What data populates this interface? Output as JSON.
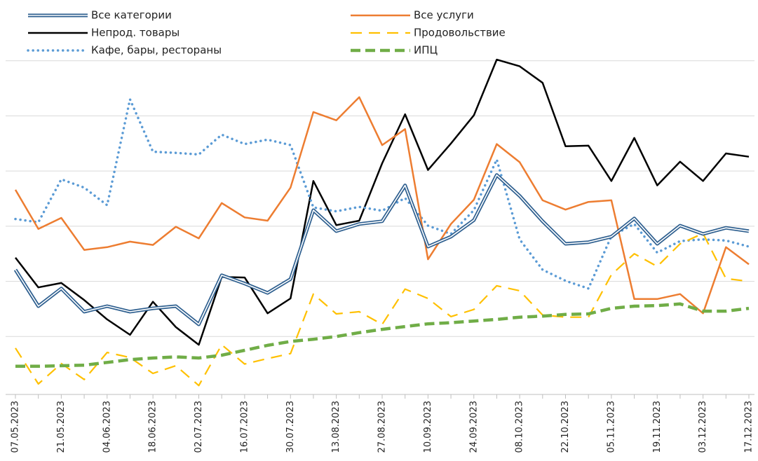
{
  "chart_data": {
    "type": "line",
    "categories": [
      "07.05.2023",
      null,
      "21.05.2023",
      null,
      "04.06.2023",
      null,
      "18.06.2023",
      null,
      "02.07.2023",
      null,
      "16.07.2023",
      null,
      "30.07.2023",
      null,
      "13.08.2023",
      null,
      "27.08.2023",
      null,
      "10.09.2023",
      null,
      "24.09.2023",
      null,
      "08.10.2023",
      null,
      "22.10.2023",
      null,
      "05.11.2023",
      null,
      "19.11.2023",
      null,
      "03.12.2023",
      null,
      "17.12.2023"
    ],
    "ylim": [
      0,
      7
    ],
    "yticks": [
      1,
      2,
      3,
      4,
      5,
      6
    ],
    "grid": true,
    "legend": "top",
    "series": [
      {
        "name": "Все категории",
        "color": "#2e5f8f",
        "line_style": "double",
        "values": [
          2.21,
          1.55,
          1.87,
          1.45,
          1.55,
          1.45,
          1.51,
          1.55,
          1.22,
          2.11,
          1.96,
          1.79,
          2.04,
          3.29,
          2.91,
          3.04,
          3.09,
          3.74,
          2.63,
          2.81,
          3.11,
          3.93,
          3.55,
          3.09,
          2.68,
          2.71,
          2.81,
          3.14,
          2.68,
          3.01,
          2.86,
          2.97,
          2.91
        ]
      },
      {
        "name": "Все услуги",
        "color": "#ed7d31",
        "line_style": "solid",
        "values": [
          3.66,
          2.95,
          3.15,
          2.57,
          2.62,
          2.72,
          2.66,
          2.99,
          2.78,
          3.42,
          3.16,
          3.1,
          3.7,
          5.07,
          4.92,
          5.34,
          4.47,
          4.76,
          2.4,
          3.04,
          3.48,
          4.49,
          4.16,
          3.47,
          3.3,
          3.44,
          3.47,
          1.68,
          1.68,
          1.77,
          1.42,
          2.62,
          2.31
        ]
      },
      {
        "name": "Непрод. товары",
        "color": "#000000",
        "line_style": "solid",
        "values": [
          2.43,
          1.89,
          1.97,
          1.66,
          1.31,
          1.03,
          1.63,
          1.17,
          0.85,
          2.08,
          2.07,
          1.42,
          1.69,
          3.82,
          3.02,
          3.1,
          4.14,
          5.03,
          4.02,
          4.5,
          5.01,
          6.02,
          5.9,
          5.6,
          4.45,
          4.46,
          3.82,
          4.6,
          3.74,
          4.17,
          3.82,
          4.32,
          4.26
        ]
      },
      {
        "name": "Продовольствие",
        "color": "#ffc000",
        "line_style": "dashed",
        "values": [
          0.79,
          0.14,
          0.51,
          0.22,
          0.71,
          0.62,
          0.33,
          0.47,
          0.11,
          0.85,
          0.5,
          0.6,
          0.69,
          1.77,
          1.41,
          1.45,
          1.22,
          1.86,
          1.69,
          1.36,
          1.49,
          1.92,
          1.83,
          1.39,
          1.35,
          1.35,
          2.12,
          2.5,
          2.27,
          2.68,
          2.87,
          2.05,
          2.0
        ]
      },
      {
        "name": "Кафе, бары, рестораны",
        "color": "#5b9bd5",
        "line_style": "dotted",
        "values": [
          3.13,
          3.07,
          3.85,
          3.7,
          3.38,
          5.3,
          4.35,
          4.33,
          4.3,
          4.66,
          4.49,
          4.57,
          4.47,
          3.34,
          3.27,
          3.35,
          3.28,
          3.51,
          3.01,
          2.86,
          3.29,
          4.21,
          2.76,
          2.21,
          2.01,
          1.87,
          2.82,
          3.04,
          2.52,
          2.73,
          2.76,
          2.74,
          2.63
        ]
      },
      {
        "name": "ИПЦ",
        "color": "#70ad47",
        "line_style": "bold-dashed",
        "values": [
          0.46,
          0.46,
          0.47,
          0.48,
          0.53,
          0.58,
          0.61,
          0.63,
          0.61,
          0.66,
          0.75,
          0.84,
          0.91,
          0.95,
          1.0,
          1.07,
          1.13,
          1.18,
          1.23,
          1.25,
          1.28,
          1.31,
          1.35,
          1.37,
          1.4,
          1.41,
          1.51,
          1.55,
          1.56,
          1.59,
          1.46,
          1.46,
          1.51
        ]
      }
    ]
  }
}
